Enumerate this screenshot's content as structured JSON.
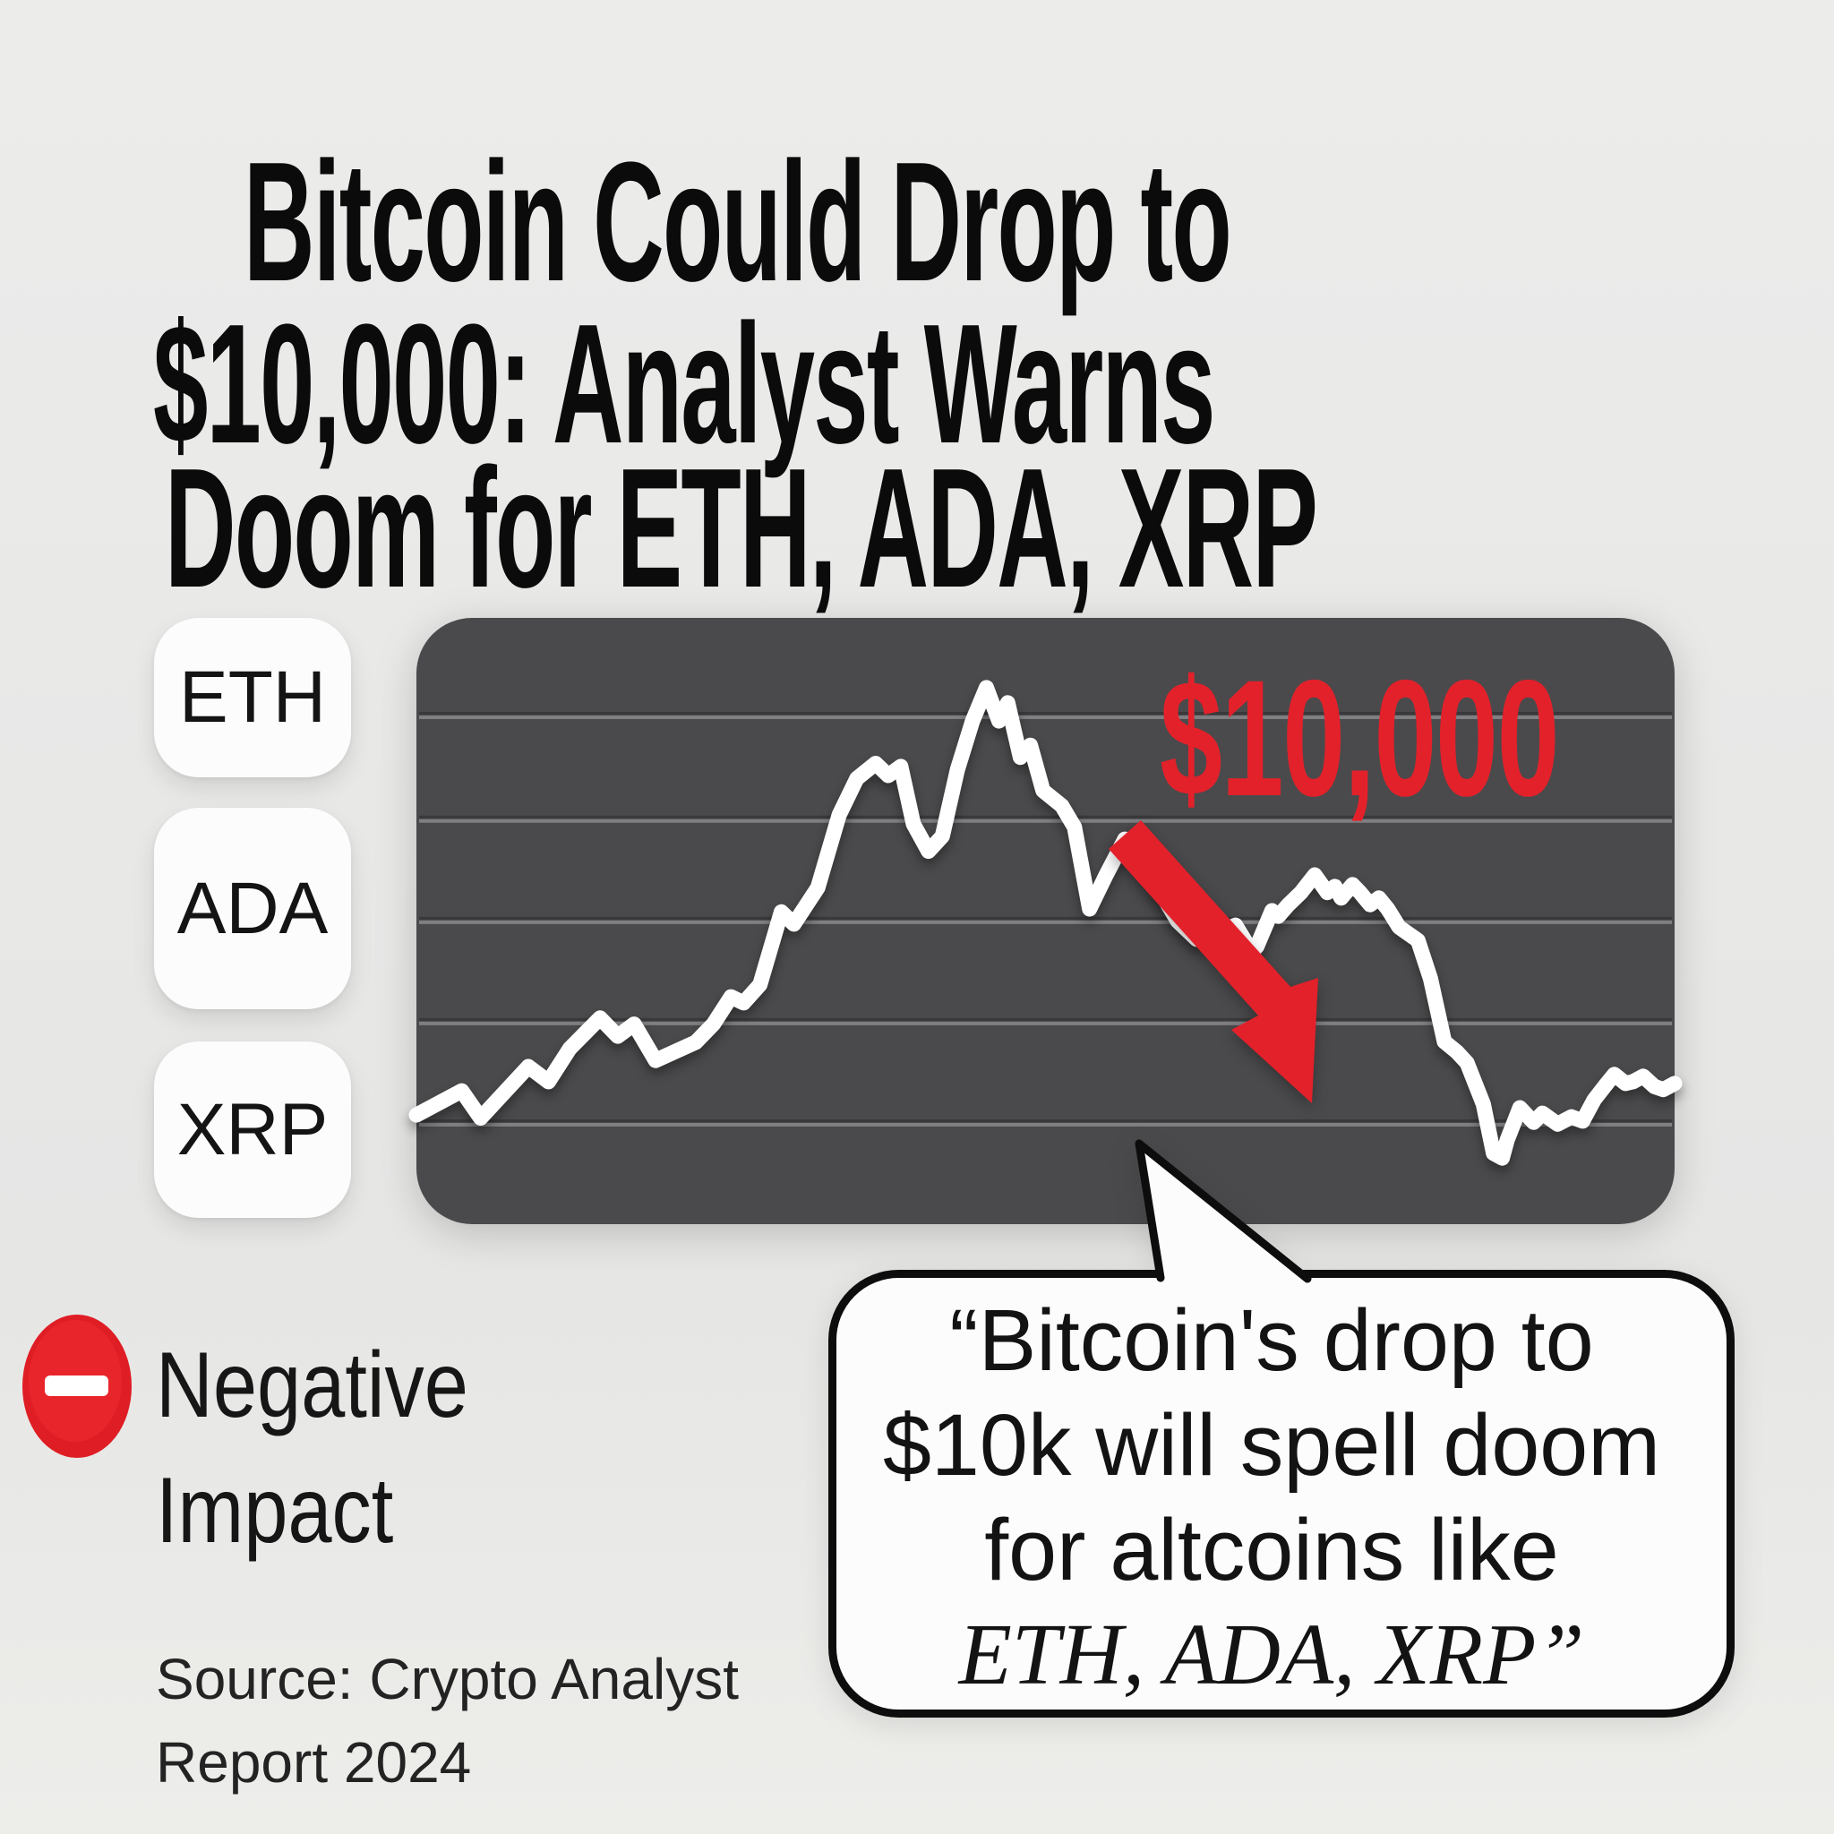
{
  "title": {
    "lines": [
      "Bitcoin Could Drop to",
      "$10,000: Analyst Warns",
      "Doom for ETH, ADA, XRP"
    ]
  },
  "coins": [
    {
      "label": "ETH"
    },
    {
      "label": "ADA"
    },
    {
      "label": "XRP"
    }
  ],
  "legend": {
    "icon": "minus-circle-icon",
    "label": "Negative Impact"
  },
  "source": {
    "lines": [
      "Source: Crypto Analyst",
      "Report 2024"
    ]
  },
  "quote": {
    "lines": [
      "“Bitcoin's drop to",
      "$10k will spell doom",
      "for altcoins like",
      "ETH, ADA, XRP”"
    ]
  },
  "colors": {
    "background": "#e9e9e8",
    "panel": "#4a4a4c",
    "line": "#ffffff",
    "accent_red": "#e3212a",
    "gridline_light": "#7f7f83",
    "gridline_dark": "#39393b",
    "pill_bg": "#fcfcfc",
    "bubble_bg": "#fcfcfc",
    "bubble_border": "#0d0d0d",
    "text": "#0b0b0b"
  },
  "chart_data": {
    "type": "line",
    "title": "",
    "xlabel": "",
    "ylabel": "",
    "description": "Stylized Bitcoin price line: noisy rally to a sharp peak, crash past the $10,000 level (red arrow annotation), dead-cat bounce, then continued decline",
    "annotation": {
      "text": "$10,000",
      "color": "#e3212a"
    },
    "legend_position": "none",
    "grid": true,
    "gridlines_percent": [
      16.4,
      33.5,
      50.2,
      66.9,
      83.6
    ],
    "crash_arrow": {
      "from_percent": [
        56.5,
        36
      ],
      "to_percent": [
        71,
        80
      ]
    },
    "line_points_percent": [
      [
        0,
        82
      ],
      [
        3.6,
        78
      ],
      [
        5.1,
        82.5
      ],
      [
        8.9,
        74
      ],
      [
        10.5,
        76.5
      ],
      [
        12.2,
        71
      ],
      [
        14.6,
        66
      ],
      [
        16,
        69
      ],
      [
        17.3,
        67
      ],
      [
        19,
        73
      ],
      [
        22.2,
        70
      ],
      [
        23.6,
        67
      ],
      [
        25,
        62.5
      ],
      [
        26,
        63.5
      ],
      [
        27.3,
        60.5
      ],
      [
        29,
        48.5
      ],
      [
        30,
        50.5
      ],
      [
        31.9,
        44.5
      ],
      [
        33.6,
        32.5
      ],
      [
        35,
        26.5
      ],
      [
        36.5,
        24
      ],
      [
        37.5,
        26
      ],
      [
        38.5,
        24.5
      ],
      [
        39.5,
        34
      ],
      [
        40.7,
        38.5
      ],
      [
        41.8,
        36
      ],
      [
        43,
        25
      ],
      [
        44.2,
        17
      ],
      [
        45.3,
        11.5
      ],
      [
        46.3,
        17
      ],
      [
        47,
        14
      ],
      [
        48,
        23
      ],
      [
        48.8,
        21
      ],
      [
        49.8,
        28.5
      ],
      [
        51.3,
        31
      ],
      [
        52.3,
        34.5
      ],
      [
        53.5,
        48
      ],
      [
        54.8,
        42.5
      ],
      [
        56.3,
        36.5
      ],
      [
        58.5,
        43
      ],
      [
        60.5,
        50
      ],
      [
        62,
        53
      ],
      [
        63,
        52
      ],
      [
        64.3,
        51.4
      ],
      [
        65.1,
        50.7
      ],
      [
        66.4,
        55.1
      ],
      [
        66.8,
        54.2
      ],
      [
        68,
        48.3
      ],
      [
        68.5,
        49.2
      ],
      [
        69.3,
        47.3
      ],
      [
        70.3,
        45.3
      ],
      [
        71.4,
        42.4
      ],
      [
        72.4,
        45.3
      ],
      [
        73,
        44.3
      ],
      [
        73.5,
        46.2
      ],
      [
        74.4,
        44
      ],
      [
        75,
        45.3
      ],
      [
        75.8,
        47.3
      ],
      [
        76.5,
        46.2
      ],
      [
        77.2,
        48
      ],
      [
        78.1,
        51
      ],
      [
        79.6,
        53.2
      ],
      [
        80.6,
        59.5
      ],
      [
        81.7,
        69.9
      ],
      [
        82.7,
        71.6
      ],
      [
        83.5,
        73.4
      ],
      [
        84.8,
        80.2
      ],
      [
        85.6,
        88.3
      ],
      [
        86.3,
        89.1
      ],
      [
        86.7,
        86.1
      ],
      [
        87.7,
        80.8
      ],
      [
        88.8,
        83.2
      ],
      [
        89.5,
        81.7
      ],
      [
        90.7,
        83.5
      ],
      [
        91.8,
        82.3
      ],
      [
        92.7,
        83
      ],
      [
        93.6,
        79.5
      ],
      [
        94.5,
        77.1
      ],
      [
        95.2,
        75.3
      ],
      [
        96.1,
        76.8
      ],
      [
        96.7,
        76.5
      ],
      [
        97.5,
        75.6
      ],
      [
        98.4,
        77.3
      ],
      [
        99.1,
        77.8
      ],
      [
        100,
        76.8
      ]
    ]
  }
}
